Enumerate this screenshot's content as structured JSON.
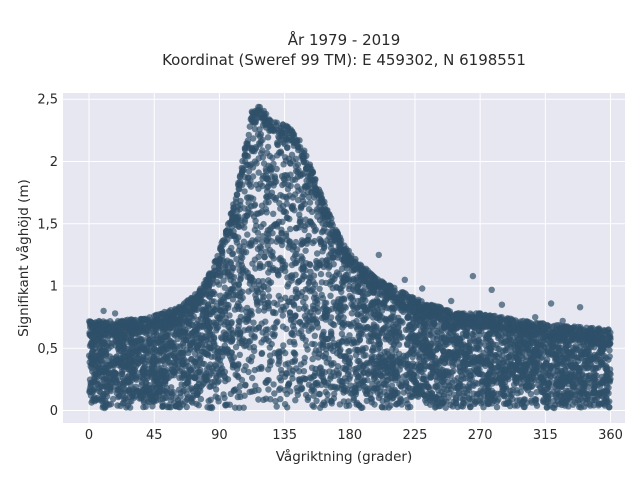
{
  "chart_data": {
    "type": "scatter",
    "title_line1": "År 1979 - 2019",
    "title_line2": "Koordinat (Sweref 99 TM): E 459302, N 6198551",
    "xlabel": "Vågriktning (grader)",
    "ylabel": "Signifikant våghöjd (m)",
    "xlim": [
      -18,
      370
    ],
    "ylim": [
      -0.1,
      2.55
    ],
    "x_ticks": [
      0,
      45,
      90,
      135,
      180,
      225,
      270,
      315,
      360
    ],
    "x_tick_labels": [
      "0",
      "45",
      "90",
      "135",
      "180",
      "225",
      "270",
      "315",
      "360"
    ],
    "y_ticks": [
      0,
      0.5,
      1,
      1.5,
      2,
      2.5
    ],
    "y_tick_labels": [
      "0",
      "0,5",
      "1",
      "1,5",
      "2",
      "2,5"
    ],
    "grid": true,
    "marker_color": "#2f5069",
    "background_color": "#e6e7f0",
    "envelope": {
      "direction": [
        0,
        20,
        40,
        60,
        75,
        85,
        95,
        105,
        112,
        118,
        125,
        135,
        145,
        155,
        165,
        175,
        185,
        200,
        225,
        250,
        270,
        300,
        330,
        360
      ],
      "max_height": [
        0.72,
        0.72,
        0.75,
        0.82,
        0.95,
        1.15,
        1.45,
        1.95,
        2.4,
        2.45,
        2.35,
        2.3,
        2.2,
        1.9,
        1.6,
        1.35,
        1.2,
        1.05,
        0.9,
        0.8,
        0.78,
        0.72,
        0.68,
        0.65
      ],
      "min_height": 0.02
    },
    "outliers": [
      {
        "x": 10,
        "y": 0.8
      },
      {
        "x": 18,
        "y": 0.78
      },
      {
        "x": 200,
        "y": 1.25
      },
      {
        "x": 218,
        "y": 1.05
      },
      {
        "x": 265,
        "y": 1.08
      },
      {
        "x": 278,
        "y": 0.97
      },
      {
        "x": 285,
        "y": 0.85
      },
      {
        "x": 319,
        "y": 0.86
      },
      {
        "x": 339,
        "y": 0.83
      },
      {
        "x": 308,
        "y": 0.75
      },
      {
        "x": 327,
        "y": 0.72
      },
      {
        "x": 352,
        "y": 0.66
      },
      {
        "x": 230,
        "y": 0.98
      },
      {
        "x": 250,
        "y": 0.88
      }
    ]
  }
}
